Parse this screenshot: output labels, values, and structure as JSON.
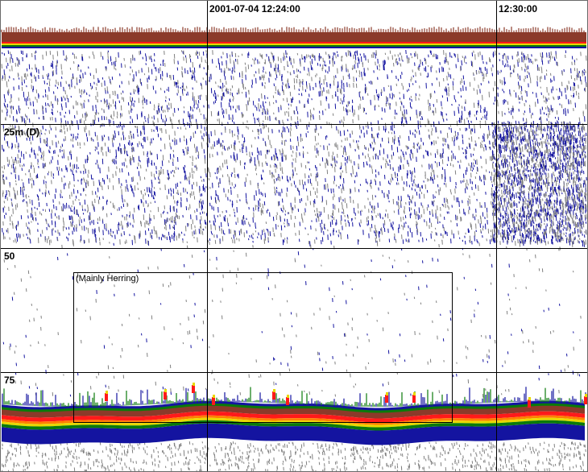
{
  "chart_data": {
    "type": "echogram",
    "title": "",
    "time_labels": [
      {
        "label": "2001-07-04 12:24:00"
      },
      {
        "label": "12:30:00"
      }
    ],
    "depth_labels": [
      {
        "label": "25m (D)",
        "depth_m": 25
      },
      {
        "label": "50",
        "depth_m": 50
      },
      {
        "label": "75",
        "depth_m": 75
      }
    ],
    "depth_range_m": [
      0,
      95
    ],
    "surface_depth_m": [
      0,
      2
    ],
    "bottom_depth_m": 82,
    "annotation": {
      "label": "(Mainly Herring)",
      "depth_range_m": [
        54,
        83
      ]
    },
    "grid": true,
    "colors": {
      "background": "#ffffff",
      "grid": "#000000",
      "frame": "#6a6a6a",
      "scale": [
        "#808080",
        "#1414a0",
        "#0a7a0a",
        "#e8d800",
        "#ff7f00",
        "#ff1a1a",
        "#8b3a2a"
      ]
    }
  }
}
